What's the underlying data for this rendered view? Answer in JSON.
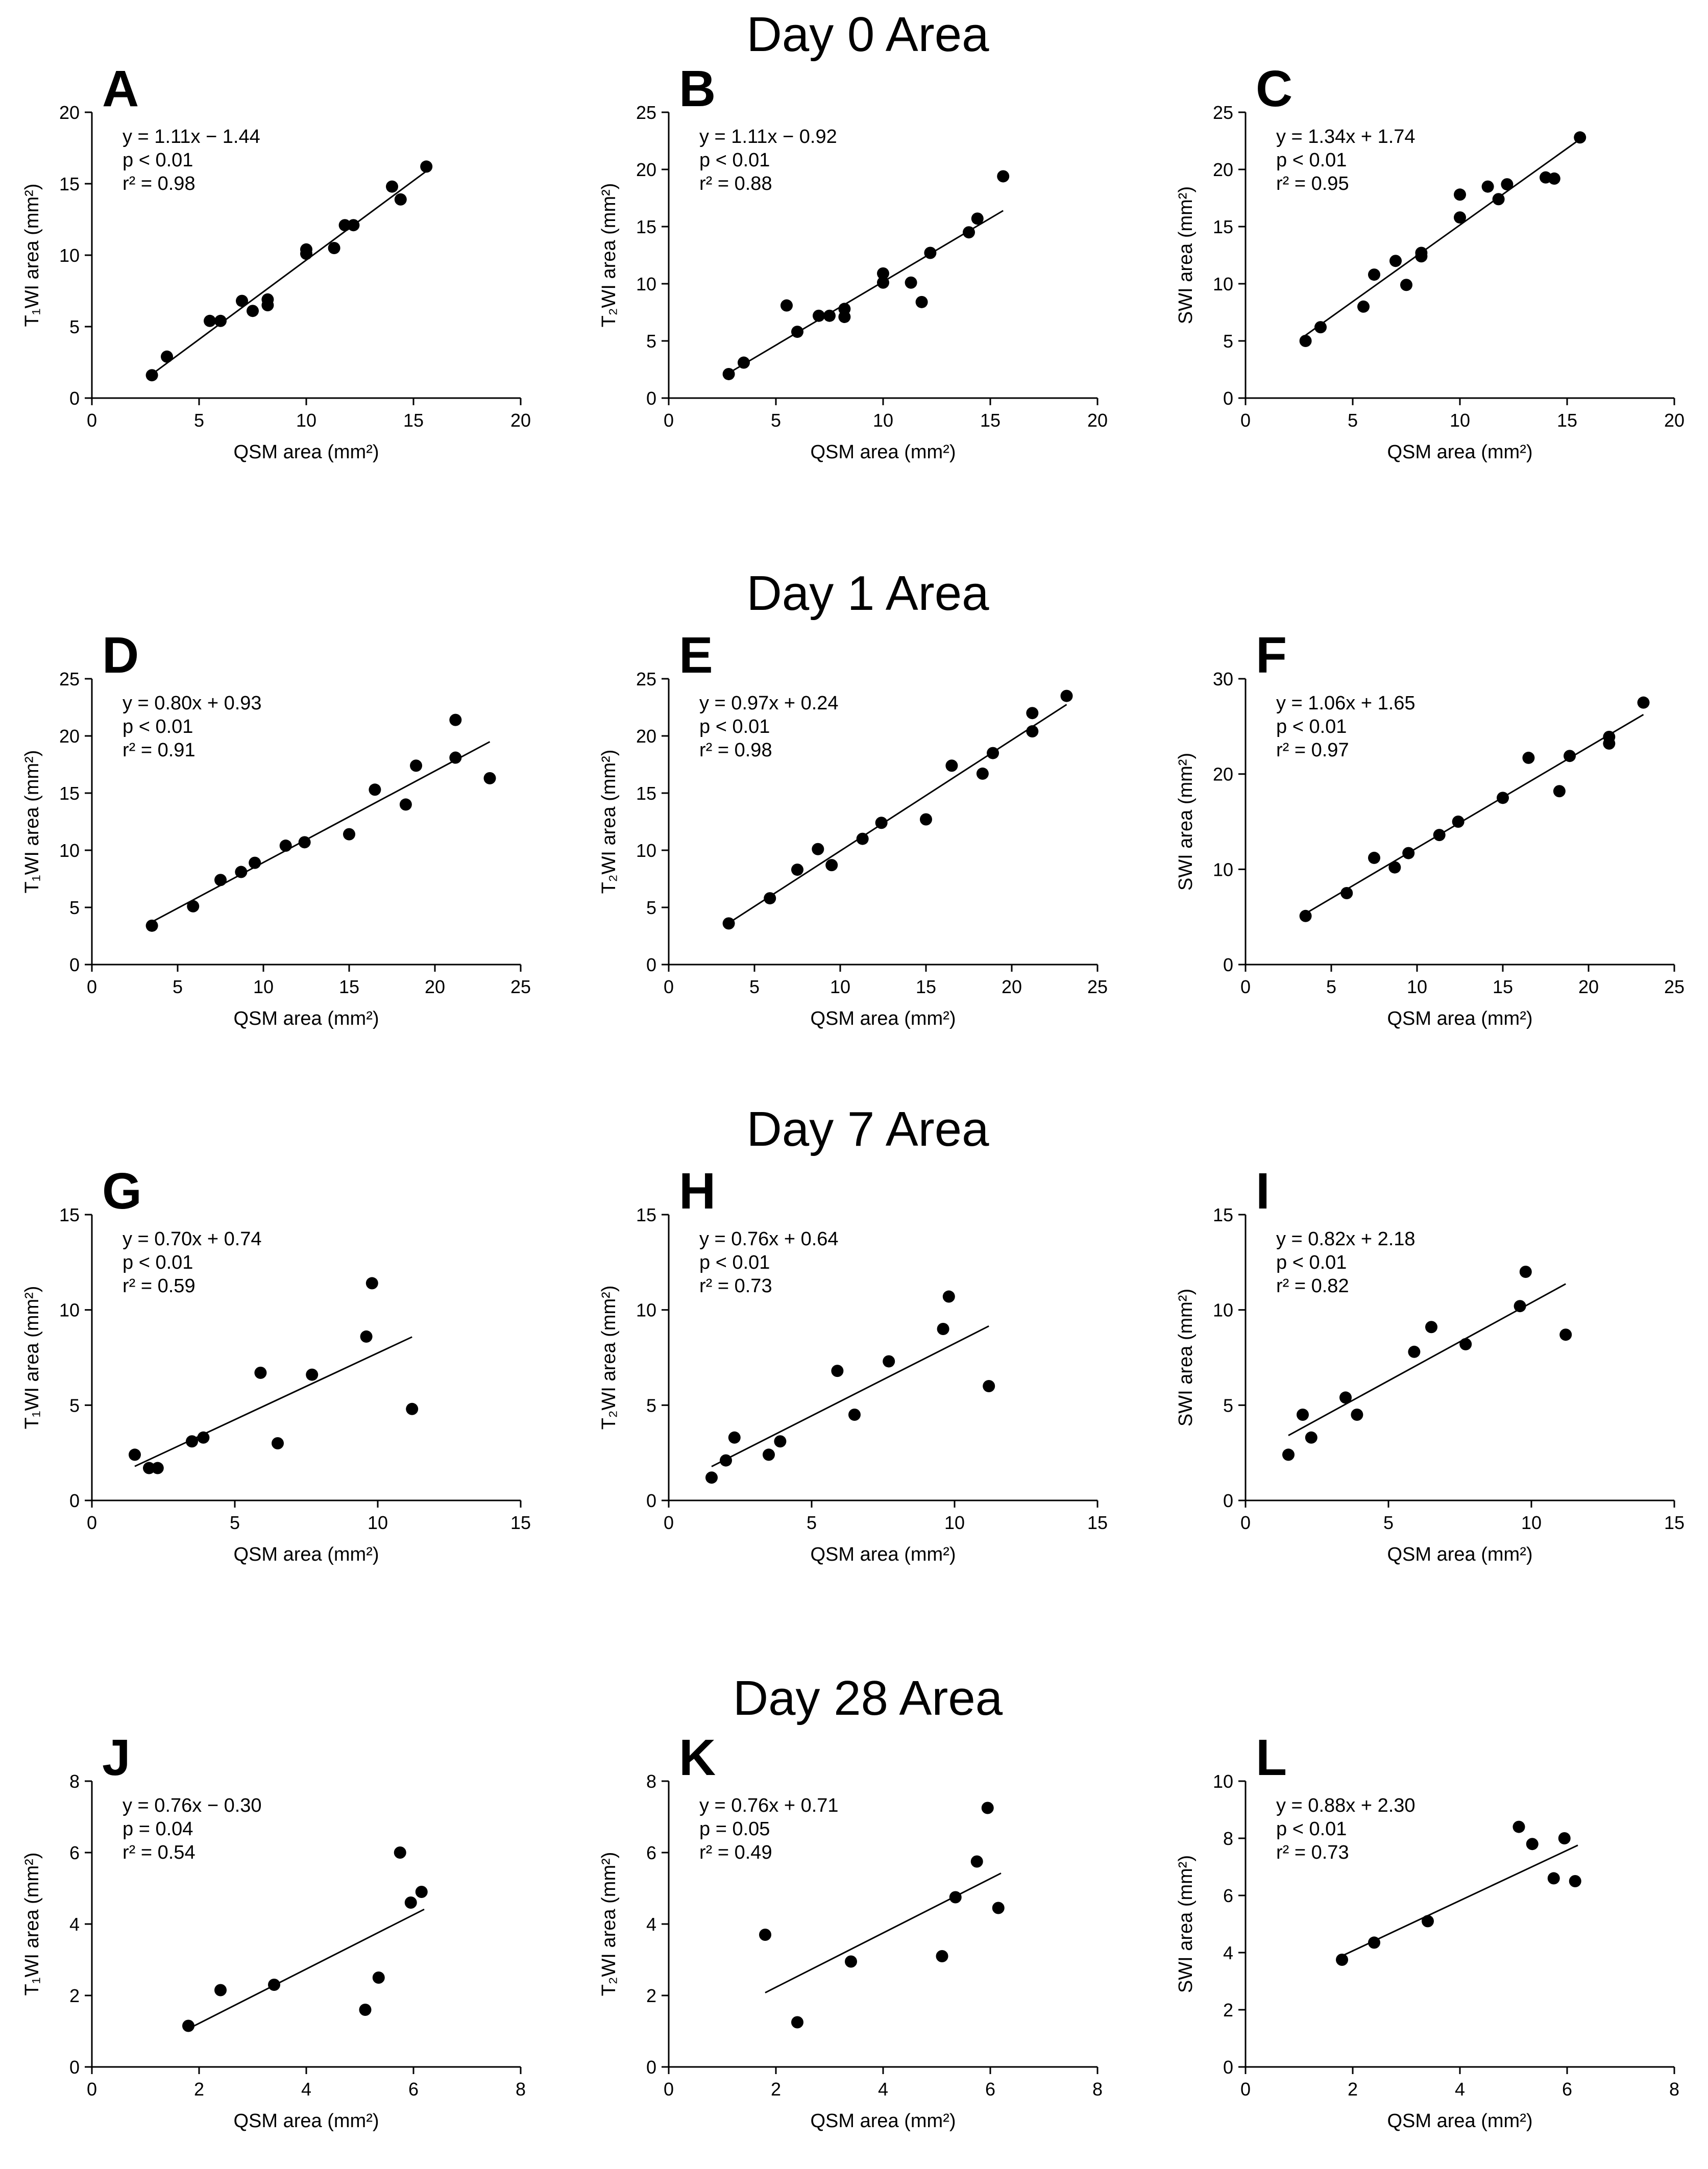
{
  "figure": {
    "rows": [
      {
        "title": "Day 0 Area",
        "panels": [
          0,
          1,
          2
        ]
      },
      {
        "title": "Day 1 Area",
        "panels": [
          3,
          4,
          5
        ]
      },
      {
        "title": "Day 7 Area",
        "panels": [
          6,
          7,
          8
        ]
      },
      {
        "title": "Day 28 Area",
        "panels": [
          9,
          10,
          11
        ]
      }
    ]
  },
  "chart_data": [
    {
      "type": "scatter",
      "letter": "A",
      "xlabel": "QSM area (mm²)",
      "ylabel": "T₁WI area (mm²)",
      "xlim": [
        0,
        20
      ],
      "ylim": [
        0,
        20
      ],
      "xticks": [
        0,
        5,
        10,
        15,
        20
      ],
      "yticks": [
        0,
        5,
        10,
        15,
        20
      ],
      "regression": {
        "equation": "y = 1.11x − 1.44",
        "p": "p < 0.01",
        "r2": "r² = 0.98",
        "slope": 1.11,
        "intercept": -1.44,
        "x_range": [
          2.8,
          15.6
        ]
      },
      "x": [
        2.8,
        3.5,
        5.5,
        6.0,
        7.0,
        7.5,
        8.2,
        8.2,
        10.0,
        10.0,
        11.3,
        11.8,
        12.2,
        14.0,
        14.4,
        15.6
      ],
      "y": [
        1.6,
        2.9,
        5.4,
        5.4,
        6.8,
        6.1,
        6.5,
        6.9,
        10.1,
        10.4,
        10.5,
        12.1,
        12.1,
        14.8,
        13.9,
        16.2
      ]
    },
    {
      "type": "scatter",
      "letter": "B",
      "xlabel": "QSM area (mm²)",
      "ylabel": "T₂WI area (mm²)",
      "xlim": [
        0,
        20
      ],
      "ylim": [
        0,
        25
      ],
      "xticks": [
        0,
        5,
        10,
        15,
        20
      ],
      "yticks": [
        0,
        5,
        10,
        15,
        20,
        25
      ],
      "regression": {
        "equation": "y = 1.11x − 0.92",
        "p": "p < 0.01",
        "r2": "r² = 0.88",
        "slope": 1.11,
        "intercept": -0.92,
        "x_range": [
          2.8,
          15.6
        ]
      },
      "x": [
        2.8,
        3.5,
        5.5,
        6.0,
        7.0,
        7.5,
        8.2,
        8.2,
        10.0,
        10.0,
        11.3,
        11.8,
        12.2,
        14.0,
        14.4,
        15.6
      ],
      "y": [
        2.1,
        3.1,
        8.1,
        5.8,
        7.2,
        7.2,
        7.1,
        7.8,
        10.1,
        10.9,
        10.1,
        8.4,
        12.7,
        14.5,
        15.7,
        19.4
      ]
    },
    {
      "type": "scatter",
      "letter": "C",
      "xlabel": "QSM area (mm²)",
      "ylabel": "SWI area (mm²)",
      "xlim": [
        0,
        20
      ],
      "ylim": [
        0,
        25
      ],
      "xticks": [
        0,
        5,
        10,
        15,
        20
      ],
      "yticks": [
        0,
        5,
        10,
        15,
        20,
        25
      ],
      "regression": {
        "equation": "y = 1.34x + 1.74",
        "p": "p < 0.01",
        "r2": "r² = 0.95",
        "slope": 1.34,
        "intercept": 1.74,
        "x_range": [
          2.8,
          15.6
        ]
      },
      "x": [
        2.8,
        3.5,
        5.5,
        6.0,
        7.0,
        7.5,
        8.2,
        8.2,
        10.0,
        10.0,
        11.3,
        11.8,
        12.2,
        14.0,
        14.4,
        15.6
      ],
      "y": [
        5.0,
        6.2,
        8.0,
        10.8,
        12.0,
        9.9,
        12.4,
        12.7,
        15.8,
        17.8,
        18.5,
        17.4,
        18.7,
        19.3,
        19.2,
        22.8
      ]
    },
    {
      "type": "scatter",
      "letter": "D",
      "xlabel": "QSM area (mm²)",
      "ylabel": "T₁WI area (mm²)",
      "xlim": [
        0,
        25
      ],
      "ylim": [
        0,
        25
      ],
      "xticks": [
        0,
        5,
        10,
        15,
        20,
        25
      ],
      "yticks": [
        0,
        5,
        10,
        15,
        20,
        25
      ],
      "regression": {
        "equation": "y = 0.80x + 0.93",
        "p": "p < 0.01",
        "r2": "r² = 0.91",
        "slope": 0.8,
        "intercept": 0.93,
        "x_range": [
          3.5,
          23.2
        ]
      },
      "x": [
        3.5,
        5.9,
        7.5,
        8.7,
        9.5,
        11.3,
        12.4,
        15.0,
        16.5,
        18.3,
        18.9,
        21.2,
        21.2,
        23.2
      ],
      "y": [
        3.4,
        5.1,
        7.4,
        8.1,
        8.9,
        10.4,
        10.7,
        11.4,
        15.3,
        14.0,
        17.4,
        18.1,
        21.4,
        16.3
      ]
    },
    {
      "type": "scatter",
      "letter": "E",
      "xlabel": "QSM area (mm²)",
      "ylabel": "T₂WI area (mm²)",
      "xlim": [
        0,
        25
      ],
      "ylim": [
        0,
        25
      ],
      "xticks": [
        0,
        5,
        10,
        15,
        20,
        25
      ],
      "yticks": [
        0,
        5,
        10,
        15,
        20,
        25
      ],
      "regression": {
        "equation": "y = 0.97x + 0.24",
        "p": "p < 0.01",
        "r2": "r² = 0.98",
        "slope": 0.97,
        "intercept": 0.24,
        "x_range": [
          3.5,
          23.2
        ]
      },
      "x": [
        3.5,
        5.9,
        7.5,
        8.7,
        9.5,
        11.3,
        12.4,
        15.0,
        16.5,
        18.3,
        18.9,
        21.2,
        21.2,
        23.2
      ],
      "y": [
        3.6,
        5.8,
        8.3,
        10.1,
        8.7,
        11.0,
        12.4,
        12.7,
        17.4,
        16.7,
        18.5,
        20.4,
        22.0,
        23.5
      ]
    },
    {
      "type": "scatter",
      "letter": "F",
      "xlabel": "QSM area (mm²)",
      "ylabel": "SWI area (mm²)",
      "xlim": [
        0,
        25
      ],
      "ylim": [
        0,
        30
      ],
      "xticks": [
        0,
        5,
        10,
        15,
        20,
        25
      ],
      "yticks": [
        0,
        10,
        20,
        30
      ],
      "regression": {
        "equation": "y = 1.06x + 1.65",
        "p": "p < 0.01",
        "r2": "r² = 0.97",
        "slope": 1.06,
        "intercept": 1.65,
        "x_range": [
          3.5,
          23.2
        ]
      },
      "x": [
        3.5,
        5.9,
        7.5,
        8.7,
        9.5,
        11.3,
        12.4,
        15.0,
        16.5,
        18.3,
        18.9,
        21.2,
        21.2,
        23.2
      ],
      "y": [
        5.1,
        7.5,
        11.2,
        10.2,
        11.7,
        13.6,
        15.0,
        17.5,
        21.7,
        18.2,
        21.9,
        23.2,
        23.9,
        27.5
      ]
    },
    {
      "type": "scatter",
      "letter": "G",
      "xlabel": "QSM area (mm²)",
      "ylabel": "T₁WI area (mm²)",
      "xlim": [
        0,
        15
      ],
      "ylim": [
        0,
        15
      ],
      "xticks": [
        0,
        5,
        10,
        15
      ],
      "yticks": [
        0,
        5,
        10,
        15
      ],
      "regression": {
        "equation": "y = 0.70x + 0.74",
        "p": "p < 0.01",
        "r2": "r² = 0.59",
        "slope": 0.7,
        "intercept": 0.74,
        "x_range": [
          1.5,
          11.2
        ]
      },
      "x": [
        1.5,
        2.0,
        2.3,
        3.5,
        3.9,
        5.9,
        6.5,
        7.7,
        9.6,
        9.8,
        11.2
      ],
      "y": [
        2.4,
        1.7,
        1.7,
        3.1,
        3.3,
        6.7,
        3.0,
        6.6,
        8.6,
        11.4,
        4.8
      ]
    },
    {
      "type": "scatter",
      "letter": "H",
      "xlabel": "QSM area (mm²)",
      "ylabel": "T₂WI area (mm²)",
      "xlim": [
        0,
        15
      ],
      "ylim": [
        0,
        15
      ],
      "xticks": [
        0,
        5,
        10,
        15
      ],
      "yticks": [
        0,
        5,
        10,
        15
      ],
      "regression": {
        "equation": "y = 0.76x + 0.64",
        "p": "p < 0.01",
        "r2": "r² = 0.73",
        "slope": 0.76,
        "intercept": 0.64,
        "x_range": [
          1.5,
          11.2
        ]
      },
      "x": [
        1.5,
        2.0,
        2.3,
        3.5,
        3.9,
        5.9,
        6.5,
        7.7,
        9.6,
        9.8,
        11.2
      ],
      "y": [
        1.2,
        2.1,
        3.3,
        2.4,
        3.1,
        6.8,
        4.5,
        7.3,
        9.0,
        10.7,
        6.0
      ]
    },
    {
      "type": "scatter",
      "letter": "I",
      "xlabel": "QSM area (mm²)",
      "ylabel": "SWI area (mm²)",
      "xlim": [
        0,
        15
      ],
      "ylim": [
        0,
        15
      ],
      "xticks": [
        0,
        5,
        10,
        15
      ],
      "yticks": [
        0,
        5,
        10,
        15
      ],
      "regression": {
        "equation": "y = 0.82x + 2.18",
        "p": "p < 0.01",
        "r2": "r² = 0.82",
        "slope": 0.82,
        "intercept": 2.18,
        "x_range": [
          1.5,
          11.2
        ]
      },
      "x": [
        1.5,
        2.0,
        2.3,
        3.5,
        3.9,
        5.9,
        6.5,
        7.7,
        9.6,
        9.8,
        11.2
      ],
      "y": [
        2.4,
        4.5,
        3.3,
        5.4,
        4.5,
        7.8,
        9.1,
        8.2,
        10.2,
        12.0,
        8.7
      ]
    },
    {
      "type": "scatter",
      "letter": "J",
      "xlabel": "QSM area (mm²)",
      "ylabel": "T₁WI area (mm²)",
      "xlim": [
        0,
        8
      ],
      "ylim": [
        0,
        8
      ],
      "xticks": [
        0,
        2,
        4,
        6,
        8
      ],
      "yticks": [
        0,
        2,
        4,
        6,
        8
      ],
      "regression": {
        "equation": "y = 0.76x − 0.30",
        "p": "p = 0.04",
        "r2": "r² = 0.54",
        "slope": 0.76,
        "intercept": -0.3,
        "x_range": [
          1.8,
          6.2
        ]
      },
      "x": [
        1.8,
        2.4,
        3.4,
        5.1,
        5.35,
        5.75,
        5.95,
        6.15
      ],
      "y": [
        1.15,
        2.15,
        2.3,
        1.6,
        2.5,
        6.0,
        4.6,
        4.9
      ]
    },
    {
      "type": "scatter",
      "letter": "K",
      "xlabel": "QSM area (mm²)",
      "ylabel": "T₂WI area (mm²)",
      "xlim": [
        0,
        8
      ],
      "ylim": [
        0,
        8
      ],
      "xticks": [
        0,
        2,
        4,
        6,
        8
      ],
      "yticks": [
        0,
        2,
        4,
        6,
        8
      ],
      "regression": {
        "equation": "y = 0.76x + 0.71",
        "p": "p = 0.05",
        "r2": "r² = 0.49",
        "slope": 0.76,
        "intercept": 0.71,
        "x_range": [
          1.8,
          6.2
        ]
      },
      "x": [
        1.8,
        2.4,
        3.4,
        5.1,
        5.35,
        5.75,
        5.95,
        6.15
      ],
      "y": [
        3.7,
        1.25,
        2.95,
        3.1,
        4.75,
        5.75,
        7.25,
        4.45
      ]
    },
    {
      "type": "scatter",
      "letter": "L",
      "xlabel": "QSM area (mm²)",
      "ylabel": "SWI area (mm²)",
      "xlim": [
        0,
        8
      ],
      "ylim": [
        0,
        10
      ],
      "xticks": [
        0,
        2,
        4,
        6,
        8
      ],
      "yticks": [
        0,
        2,
        4,
        6,
        8,
        10
      ],
      "regression": {
        "equation": "y = 0.88x + 2.30",
        "p": "p < 0.01",
        "r2": "r² = 0.73",
        "slope": 0.88,
        "intercept": 2.3,
        "x_range": [
          1.8,
          6.2
        ]
      },
      "x": [
        1.8,
        2.4,
        3.4,
        5.1,
        5.35,
        5.75,
        5.95,
        6.15
      ],
      "y": [
        3.75,
        4.35,
        5.1,
        8.4,
        7.8,
        6.6,
        8.0,
        6.5
      ]
    }
  ]
}
